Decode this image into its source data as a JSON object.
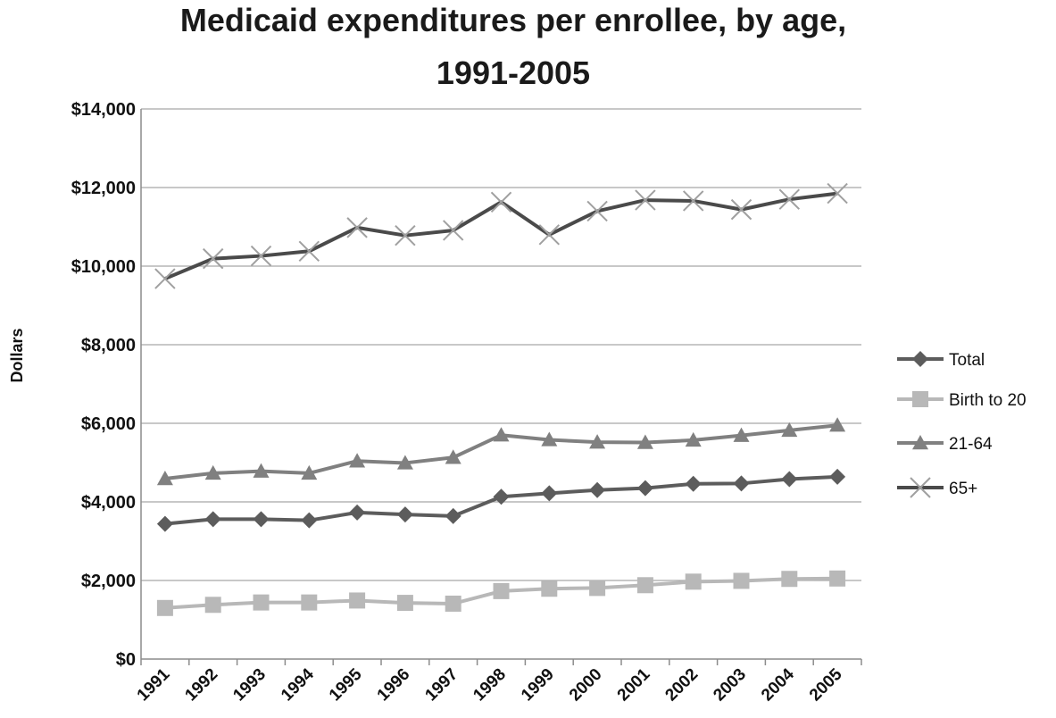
{
  "chart_data": {
    "type": "line",
    "title": [
      "Medicaid expenditures per enrollee, by age,",
      "1991-2005"
    ],
    "xlabel": "",
    "ylabel": "Dollars",
    "ylim": [
      0,
      14000
    ],
    "yticks": [
      0,
      2000,
      4000,
      6000,
      8000,
      10000,
      12000,
      14000
    ],
    "ytick_labels": [
      "$0",
      "$2,000",
      "$4,000",
      "$6,000",
      "$8,000",
      "$10,000",
      "$12,000",
      "$14,000"
    ],
    "grid": true,
    "legend_position": "right",
    "categories": [
      "1991",
      "1992",
      "1993",
      "1994",
      "1995",
      "1996",
      "1997",
      "1998",
      "1999",
      "2000",
      "2001",
      "2002",
      "2003",
      "2004",
      "2005"
    ],
    "series": [
      {
        "name": "Total",
        "marker": "diamond",
        "color": "#5c5c5c",
        "values": [
          3440,
          3560,
          3560,
          3530,
          3730,
          3680,
          3640,
          4130,
          4220,
          4300,
          4350,
          4460,
          4470,
          4580,
          4640
        ]
      },
      {
        "name": "Birth to 20",
        "marker": "square",
        "color": "#b8b8b8",
        "values": [
          1300,
          1380,
          1440,
          1440,
          1490,
          1430,
          1410,
          1730,
          1790,
          1810,
          1880,
          1970,
          1990,
          2040,
          2050
        ]
      },
      {
        "name": "21-64",
        "marker": "triangle",
        "color": "#808080",
        "values": [
          4590,
          4730,
          4780,
          4730,
          5040,
          4990,
          5130,
          5700,
          5580,
          5520,
          5510,
          5570,
          5690,
          5820,
          5950
        ]
      },
      {
        "name": "65+",
        "marker": "x",
        "color": "#4a4a4a",
        "values": [
          9680,
          10190,
          10260,
          10380,
          10980,
          10780,
          10910,
          11630,
          10800,
          11400,
          11680,
          11660,
          11440,
          11700,
          11850
        ]
      }
    ]
  }
}
